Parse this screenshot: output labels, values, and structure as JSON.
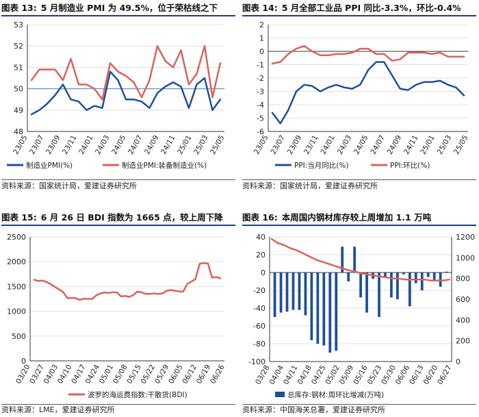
{
  "colors": {
    "blue": "#1f4e9c",
    "red": "#d9625b",
    "grid": "#d9d9d9",
    "axis": "#333333",
    "title_rule": "#1f3c88"
  },
  "charts": [
    {
      "label": "图表 13:",
      "title": "5 月制造业 PMI 为 49.5%，位于荣枯线之下",
      "source": "资料来源：国家统计局，爱建证券研究所",
      "chart_data": {
        "type": "line",
        "ylim": [
          48,
          53
        ],
        "yticks": [
          "53",
          "52",
          "51",
          "50",
          "49",
          "48"
        ],
        "categories": [
          "23/05",
          "23/06",
          "23/07",
          "23/08",
          "23/09",
          "23/10",
          "23/11",
          "23/12",
          "24/01",
          "24/02",
          "24/03",
          "24/04",
          "24/05",
          "24/06",
          "24/07",
          "24/08",
          "24/09",
          "24/10",
          "24/11",
          "24/12",
          "25/01",
          "25/02",
          "25/03",
          "25/04",
          "25/05"
        ],
        "xtick_labels": [
          "23/05",
          "23/07",
          "23/09",
          "23/11",
          "24/01",
          "24/03",
          "24/05",
          "24/07",
          "24/09",
          "24/11",
          "25/01",
          "25/03",
          "25/05"
        ],
        "reference_line": 50,
        "series": [
          {
            "name": "制造业PMI(%)",
            "color": "blue",
            "values": [
              48.8,
              49.0,
              49.3,
              49.7,
              50.2,
              49.5,
              49.4,
              49.0,
              49.2,
              49.1,
              50.8,
              50.4,
              49.5,
              49.5,
              49.4,
              49.1,
              49.8,
              50.1,
              50.3,
              50.1,
              49.1,
              50.2,
              50.5,
              49.0,
              49.5
            ]
          },
          {
            "name": "制造业PMI:装备制造业(%)",
            "color": "red",
            "values": [
              50.4,
              50.9,
              50.9,
              50.9,
              50.4,
              51.4,
              50.2,
              50.2,
              50.0,
              49.5,
              51.2,
              50.8,
              50.6,
              50.3,
              49.6,
              50.4,
              52.0,
              51.3,
              51.0,
              51.8,
              50.2,
              50.7,
              52.0,
              49.6,
              51.2
            ]
          }
        ]
      }
    },
    {
      "label": "图表 14:",
      "title": "5 月全部工业品 PPI 同比-3.3%，环比-0.4%",
      "source": "资料来源：国家统计局，爱建证券研究所",
      "chart_data": {
        "type": "line",
        "ylim": [
          -6,
          2
        ],
        "yticks": [
          "2",
          "1",
          "0",
          "-1",
          "-2",
          "-3",
          "-4",
          "-5",
          "-6"
        ],
        "categories": [
          "23/05",
          "23/06",
          "23/07",
          "23/08",
          "23/09",
          "23/10",
          "23/11",
          "23/12",
          "24/01",
          "24/02",
          "24/03",
          "24/04",
          "24/05",
          "24/06",
          "24/07",
          "24/08",
          "24/09",
          "24/10",
          "24/11",
          "24/12",
          "25/01",
          "25/02",
          "25/03",
          "25/04",
          "25/05"
        ],
        "xtick_labels": [
          "23/05",
          "23/07",
          "23/09",
          "23/11",
          "24/01",
          "24/03",
          "24/05",
          "24/07",
          "24/09",
          "24/11",
          "25/01",
          "25/03",
          "25/05"
        ],
        "reference_line": 0,
        "series": [
          {
            "name": "PPI:当月同比(%)",
            "color": "blue",
            "values": [
              -4.6,
              -5.4,
              -4.4,
              -3.0,
              -2.5,
              -2.6,
              -3.0,
              -2.7,
              -2.5,
              -2.7,
              -2.8,
              -2.5,
              -1.4,
              -0.8,
              -0.8,
              -1.8,
              -2.8,
              -2.9,
              -2.5,
              -2.3,
              -2.3,
              -2.2,
              -2.5,
              -2.7,
              -3.3
            ]
          },
          {
            "name": "PPI:环比(%)",
            "color": "red",
            "values": [
              -0.9,
              -0.8,
              -0.2,
              0.2,
              0.4,
              0.0,
              -0.3,
              -0.3,
              -0.2,
              -0.2,
              -0.1,
              0.2,
              0.2,
              -0.2,
              -0.2,
              -0.7,
              -0.6,
              -0.1,
              -0.1,
              -0.1,
              -0.2,
              -0.1,
              -0.4,
              -0.4,
              -0.4
            ]
          }
        ]
      }
    },
    {
      "label": "图表 15:",
      "title": "6 月 26 日 BDI 指数为 1665 点，较上周下降",
      "source": "资料来源：LME，爱建证券研究所",
      "chart_data": {
        "type": "line",
        "ylim": [
          0,
          2500
        ],
        "yticks": [
          "2500",
          "2000",
          "1500",
          "1000",
          "500",
          "0"
        ],
        "xtick_labels": [
          "03/20",
          "03/27",
          "04/03",
          "04/10",
          "04/17",
          "04/24",
          "05/01",
          "05/08",
          "05/15",
          "05/22",
          "05/29",
          "06/05",
          "06/12",
          "06/19",
          "06/26"
        ],
        "series": [
          {
            "name": "波罗的海运费指数:干散货(BDI)",
            "color": "red",
            "values": [
              1635,
              1610,
              1620,
              1590,
              1545,
              1490,
              1440,
              1390,
              1265,
              1270,
              1265,
              1230,
              1255,
              1250,
              1250,
              1320,
              1360,
              1380,
              1370,
              1385,
              1380,
              1300,
              1310,
              1290,
              1330,
              1400,
              1380,
              1350,
              1350,
              1360,
              1350,
              1360,
              1410,
              1430,
              1415,
              1400,
              1395,
              1550,
              1600,
              1650,
              1960,
              1970,
              1965,
              1680,
              1690,
              1665
            ]
          }
        ]
      }
    },
    {
      "label": "图表 16:",
      "title": "本周国内钢材库存较上周增加 1.1 万吨",
      "source": "资料来源：中国海关总署，爱建证券研究所",
      "chart_data": {
        "type": "bar",
        "ylim": [
          -100,
          40
        ],
        "yticks": [
          "40",
          "20",
          "0",
          "-20",
          "-40",
          "-60",
          "-80",
          "-100"
        ],
        "y2lim": [
          0,
          1200
        ],
        "y2ticks": [
          "1200",
          "1000",
          "800",
          "600",
          "400",
          "200",
          "0"
        ],
        "xtick_labels": [
          "03/28",
          "04/04",
          "04/11",
          "04/18",
          "04/25",
          "05/02",
          "05/09",
          "05/16",
          "05/23",
          "05/30",
          "06/06",
          "06/13",
          "06/20",
          "06/27"
        ],
        "series": [
          {
            "name": "总库存:钢材:周环比增减(万吨)",
            "color": "blue",
            "values": [
              -50,
              -45,
              -44,
              -42,
              -42,
              -48,
              -76,
              -80,
              -82,
              -90,
              -88,
              29,
              -10,
              29,
              -28,
              -45,
              -7,
              -50,
              -5,
              -28,
              -30,
              -2,
              -38,
              -12,
              -20,
              -5,
              -10,
              -16,
              1
            ]
          },
          {
            "name": "总库存:钢材(万吨)",
            "color": "red",
            "axis": "right",
            "values": [
              1180,
              1140,
              1120,
              1090,
              1070,
              1040,
              1010,
              980,
              960,
              940,
              920,
              900,
              880,
              870,
              850,
              840,
              830,
              820,
              810,
              800,
              800,
              790,
              790,
              790,
              790,
              780,
              780,
              780,
              790
            ]
          }
        ]
      }
    }
  ]
}
